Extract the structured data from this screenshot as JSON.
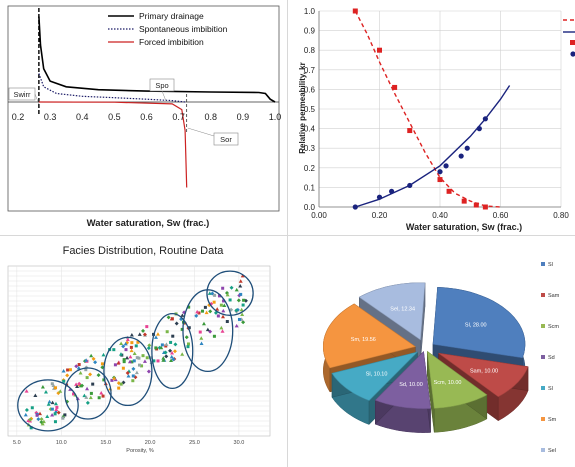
{
  "chart_data": [
    {
      "type": "line",
      "xlabel": "Water saturation, Sw (frac.)",
      "x_ticks": [
        "0.2",
        "0.3",
        "0.4",
        "0.5",
        "0.6",
        "0.7",
        "0.8",
        "0.9",
        "1.0"
      ],
      "xlim": [
        0.2,
        1.0
      ],
      "series": [
        {
          "name": "Primary drainage",
          "style": "solid",
          "color": "#000000",
          "points": [
            [
              0.265,
              9
            ],
            [
              0.27,
              6
            ],
            [
              0.28,
              3.5
            ],
            [
              0.3,
              2.2
            ],
            [
              0.35,
              1.6
            ],
            [
              0.45,
              1.3
            ],
            [
              0.6,
              1.15
            ],
            [
              0.8,
              1.05
            ],
            [
              0.95,
              1.0
            ],
            [
              0.97,
              0.9
            ],
            [
              0.985,
              0.3
            ],
            [
              1.0,
              0
            ]
          ]
        },
        {
          "name": "Spontaneous imbibition",
          "style": "dotted",
          "color": "#1a1a66",
          "points": [
            [
              0.265,
              3.0
            ],
            [
              0.28,
              1.6
            ],
            [
              0.32,
              0.9
            ],
            [
              0.4,
              0.6
            ],
            [
              0.5,
              0.45
            ],
            [
              0.6,
              0.3
            ],
            [
              0.68,
              0.15
            ],
            [
              0.72,
              0
            ]
          ]
        },
        {
          "name": "Forced imbibition",
          "style": "solid",
          "color": "#cc2222",
          "points": [
            [
              0.265,
              0
            ],
            [
              0.5,
              -0.02
            ],
            [
              0.68,
              -0.2
            ],
            [
              0.71,
              -0.8
            ],
            [
              0.72,
              -3
            ],
            [
              0.725,
              -9
            ]
          ]
        }
      ],
      "annotations": [
        "Swirr",
        "Spo",
        "Sor"
      ]
    },
    {
      "type": "scatter",
      "xlabel": "Water saturation, Sw (frac.)",
      "ylabel": "Relative permeability, kr",
      "xlim": [
        0.0,
        0.8
      ],
      "ylim": [
        0.0,
        1.0
      ],
      "x_ticks": [
        "0.00",
        "0.20",
        "0.40",
        "0.60",
        "0.80"
      ],
      "y_ticks": [
        "0.0",
        "0.1",
        "0.2",
        "0.3",
        "0.4",
        "0.5",
        "0.6",
        "0.7",
        "0.8",
        "0.9",
        "1.0"
      ],
      "series": [
        {
          "name": "",
          "kind": "points",
          "marker": "square",
          "color": "#dd2222",
          "points": [
            [
              0.12,
              1.0
            ],
            [
              0.2,
              0.8
            ],
            [
              0.25,
              0.61
            ],
            [
              0.3,
              0.39
            ],
            [
              0.4,
              0.14
            ],
            [
              0.43,
              0.08
            ],
            [
              0.48,
              0.03
            ],
            [
              0.52,
              0.01
            ],
            [
              0.55,
              0.0
            ]
          ]
        },
        {
          "name": "",
          "kind": "line",
          "style": "dashed",
          "color": "#dd2222",
          "points": [
            [
              0.12,
              1.0
            ],
            [
              0.16,
              0.88
            ],
            [
              0.2,
              0.74
            ],
            [
              0.25,
              0.58
            ],
            [
              0.3,
              0.43
            ],
            [
              0.35,
              0.28
            ],
            [
              0.4,
              0.15
            ],
            [
              0.45,
              0.07
            ],
            [
              0.5,
              0.03
            ],
            [
              0.55,
              0.005
            ],
            [
              0.6,
              0.0
            ]
          ]
        },
        {
          "name": "",
          "kind": "points",
          "marker": "circle",
          "color": "#1a237e",
          "points": [
            [
              0.12,
              0.0
            ],
            [
              0.2,
              0.05
            ],
            [
              0.24,
              0.08
            ],
            [
              0.3,
              0.11
            ],
            [
              0.4,
              0.18
            ],
            [
              0.42,
              0.21
            ],
            [
              0.47,
              0.26
            ],
            [
              0.49,
              0.3
            ],
            [
              0.53,
              0.4
            ],
            [
              0.55,
              0.45
            ]
          ]
        },
        {
          "name": "",
          "kind": "line",
          "style": "solid",
          "color": "#1a237e",
          "points": [
            [
              0.12,
              0.0
            ],
            [
              0.2,
              0.04
            ],
            [
              0.3,
              0.11
            ],
            [
              0.4,
              0.21
            ],
            [
              0.5,
              0.36
            ],
            [
              0.55,
              0.45
            ],
            [
              0.6,
              0.55
            ],
            [
              0.63,
              0.62
            ]
          ]
        }
      ]
    },
    {
      "type": "scatter",
      "title": "Facies Distribution, Routine Data",
      "xlabel": "Porosity, %",
      "x_ticks": [
        "5.0",
        "10.0",
        "15.0",
        "20.0",
        "25.0",
        "30.0"
      ],
      "xlim": [
        4.0,
        33.5
      ],
      "clusters": [
        {
          "cx": 8.5,
          "cy": 0.18,
          "rx": 3.4,
          "ry": 0.15
        },
        {
          "cx": 13.0,
          "cy": 0.25,
          "rx": 2.6,
          "ry": 0.15
        },
        {
          "cx": 17.5,
          "cy": 0.38,
          "rx": 2.7,
          "ry": 0.2
        },
        {
          "cx": 22.5,
          "cy": 0.5,
          "rx": 2.3,
          "ry": 0.22
        },
        {
          "cx": 26.5,
          "cy": 0.62,
          "rx": 2.8,
          "ry": 0.24
        },
        {
          "cx": 29.0,
          "cy": 0.84,
          "rx": 2.6,
          "ry": 0.13
        }
      ]
    },
    {
      "type": "pie",
      "categories": [
        "Sl",
        "Sam",
        "Scm",
        "Sd",
        "Sl",
        "Sm",
        "Sel"
      ],
      "slice_labels": [
        "Sl, 28.00",
        "Sam, 10.00",
        "Scm, 10.00",
        "Sd, 10.00",
        "Sl, 10.10",
        "Sm, 19.56",
        "Sel, 12.34"
      ],
      "values": [
        28.0,
        10.0,
        10.0,
        10.0,
        10.1,
        19.56,
        12.34
      ],
      "colors": [
        "#4f7fbe",
        "#be4b48",
        "#98b954",
        "#7d5fa0",
        "#46aac5",
        "#f59540",
        "#a8bcdf"
      ]
    }
  ]
}
